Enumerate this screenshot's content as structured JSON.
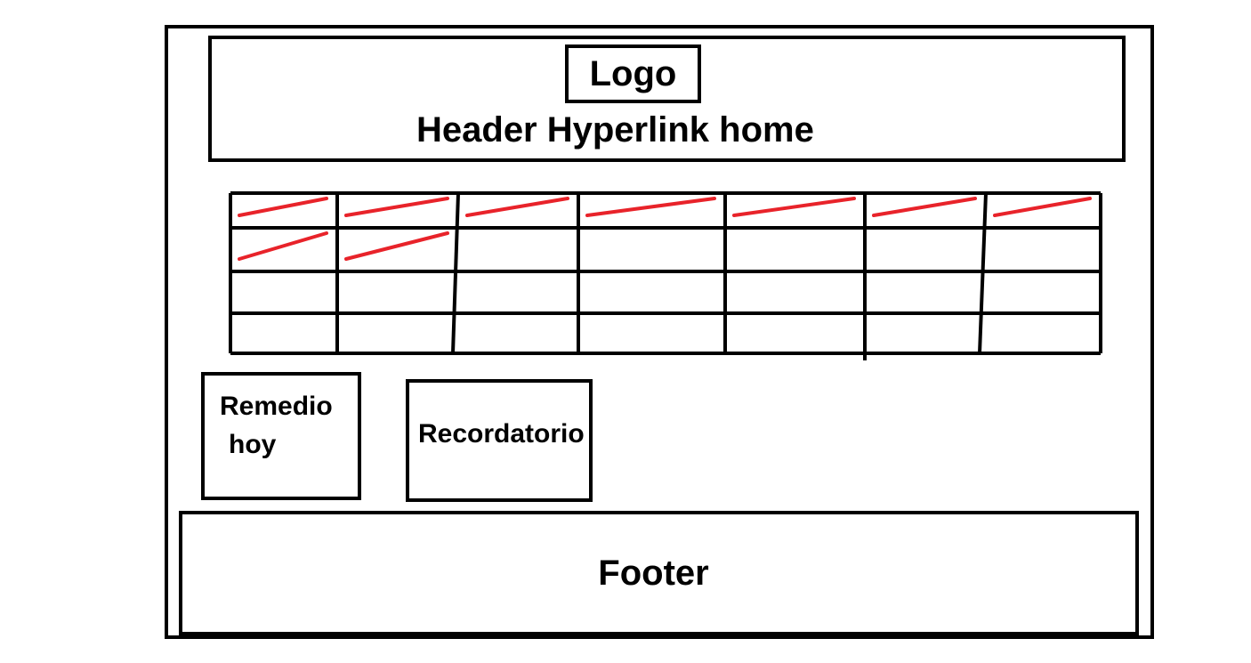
{
  "header": {
    "logo_label": "Logo",
    "link_label": "Header Hyperlink home"
  },
  "grid": {
    "columns": 7,
    "rows": 4,
    "struck_cells": [
      [
        0,
        0
      ],
      [
        0,
        1
      ],
      [
        0,
        2
      ],
      [
        0,
        3
      ],
      [
        0,
        4
      ],
      [
        0,
        5
      ],
      [
        0,
        6
      ],
      [
        1,
        0
      ],
      [
        1,
        1
      ]
    ],
    "line_color": "#000000",
    "strike_color": "#e8232a"
  },
  "cards": {
    "remedio_line1": "Remedio",
    "remedio_line2": "hoy",
    "recordatorio_label": "Recordatorio"
  },
  "footer": {
    "label": "Footer"
  }
}
